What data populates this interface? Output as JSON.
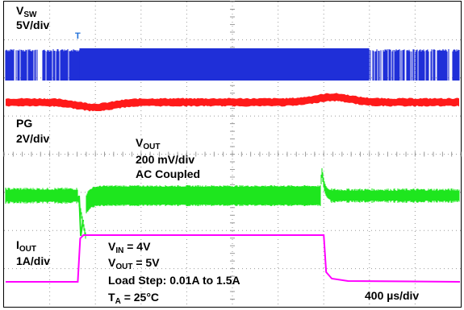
{
  "chart_data": {
    "type": "line",
    "title": "",
    "time_scale": "400 µs/div",
    "divisions": {
      "x": 10,
      "y": 8
    },
    "grid": true,
    "conditions": {
      "vin": "= 4V",
      "vout": "= 5V",
      "load_step": "Load Step: 0.01A to 1.5A",
      "ta": "= 25°C"
    },
    "trigger_marker": "T",
    "series": [
      {
        "name": "V",
        "sub": "SW",
        "scale": "5V/div",
        "color": "#1f2fd8",
        "kind": "switching",
        "dense_region_div": [
          1.65,
          8.0
        ]
      },
      {
        "name": "PG",
        "sub": "",
        "scale": "2V/div",
        "color": "#ff1a1a",
        "kind": "pg",
        "bumps": [
          {
            "t_div": 2.0,
            "amp": 0.35
          },
          {
            "t_div": 7.2,
            "amp": -0.35
          }
        ]
      },
      {
        "name": "V",
        "sub": "OUT",
        "scale": "200 mV/div",
        "coupling": "AC Coupled",
        "color": "#1ee61e",
        "kind": "vout",
        "step_events_div": [
          1.68,
          7.0
        ]
      },
      {
        "name": "I",
        "sub": "OUT",
        "scale": "1A/div",
        "color": "#ff00ff",
        "kind": "iout",
        "low_A": 0.01,
        "high_A": 1.5,
        "rise_div": 1.65,
        "fall_div": 7.0
      }
    ]
  }
}
